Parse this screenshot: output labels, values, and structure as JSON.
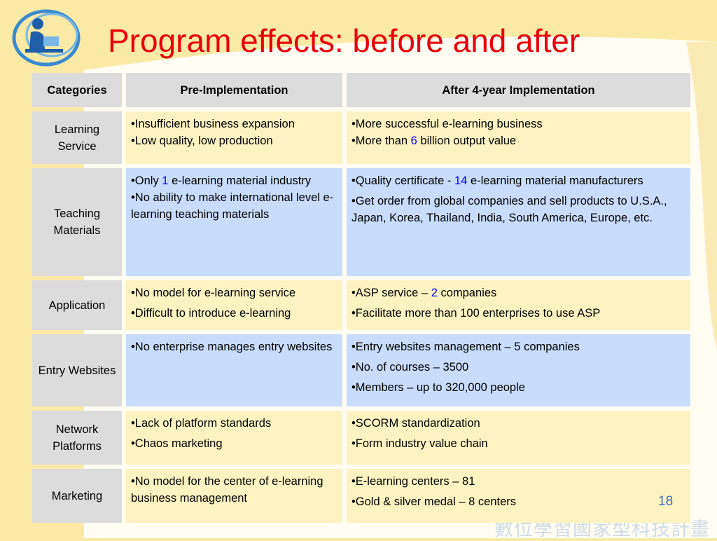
{
  "slide": {
    "title": "Program effects: before and after",
    "page_number": "18",
    "footer_text": "數位學習國家型科技計畫"
  },
  "table": {
    "headers": [
      "Categories",
      "Pre-Implementation",
      "After 4-year Implementation"
    ],
    "rows": [
      {
        "category": "Learning Service",
        "pre": [
          {
            "before": "•Insufficient business expansion",
            "hl": "",
            "after": ""
          },
          {
            "before": "•Low quality, low production",
            "hl": "",
            "after": ""
          }
        ],
        "post": [
          {
            "before": "•More successful e-learning business",
            "hl": "",
            "after": ""
          },
          {
            "before": "•More than ",
            "hl": "6",
            "after": " billion output value"
          }
        ]
      },
      {
        "category": "Teaching Materials",
        "pre": [
          {
            "before": "•Only ",
            "hl": "1",
            "after": " e-learning material industry"
          },
          {
            "before": "•No ability to make international level e-learning teaching materials",
            "hl": "",
            "after": ""
          }
        ],
        "post": [
          {
            "before": "•Quality certificate - ",
            "hl": "14",
            "after": " e-learning material manufacturers"
          },
          {
            "before": "•Get order from global companies and sell products to U.S.A., Japan, Korea, Thailand, India, South America, Europe, etc.",
            "hl": "",
            "after": ""
          }
        ]
      },
      {
        "category": "Application",
        "pre": [
          {
            "before": "•No model for e-learning service",
            "hl": "",
            "after": ""
          },
          {
            "before": "•Difficult to introduce e-learning",
            "hl": "",
            "after": ""
          }
        ],
        "post": [
          {
            "before": "•ASP service – ",
            "hl": "2",
            "after": " companies"
          },
          {
            "before": "•Facilitate more than 100 enterprises to use ASP",
            "hl": "",
            "after": ""
          }
        ]
      },
      {
        "category": "Entry Websites",
        "pre": [
          {
            "before": "•No enterprise manages entry websites",
            "hl": "",
            "after": ""
          }
        ],
        "post": [
          {
            "before": "•Entry websites management – 5 companies",
            "hl": "",
            "after": ""
          },
          {
            "before": "•No. of courses – 3500",
            "hl": "",
            "after": ""
          },
          {
            "before": "•Members – up to 320,000 people",
            "hl": "",
            "after": ""
          }
        ]
      },
      {
        "category": "Network Platforms",
        "pre": [
          {
            "before": "•Lack of platform standards",
            "hl": "",
            "after": ""
          },
          {
            "before": "•Chaos marketing",
            "hl": "",
            "after": ""
          }
        ],
        "post": [
          {
            "before": "•SCORM standardization",
            "hl": "",
            "after": ""
          },
          {
            "before": "•Form industry value chain",
            "hl": "",
            "after": ""
          }
        ]
      },
      {
        "category": "Marketing",
        "pre": [
          {
            "before": "•No model for the center of e-learning business management",
            "hl": "",
            "after": ""
          }
        ],
        "post": [
          {
            "before": "•E-learning centers – 81",
            "hl": "",
            "after": ""
          },
          {
            "before": "•Gold & silver medal – 8 centers",
            "hl": "",
            "after": ""
          }
        ]
      }
    ]
  },
  "colors": {
    "title": "#e8000b",
    "highlight_number": "#0000ff",
    "header_bg": "#dcdcdc",
    "row_yellow": "#fdf3c2",
    "row_blue": "#c8dcfc",
    "background": "#fbe9a6"
  },
  "icons": [
    "e-learning-logo-icon"
  ]
}
